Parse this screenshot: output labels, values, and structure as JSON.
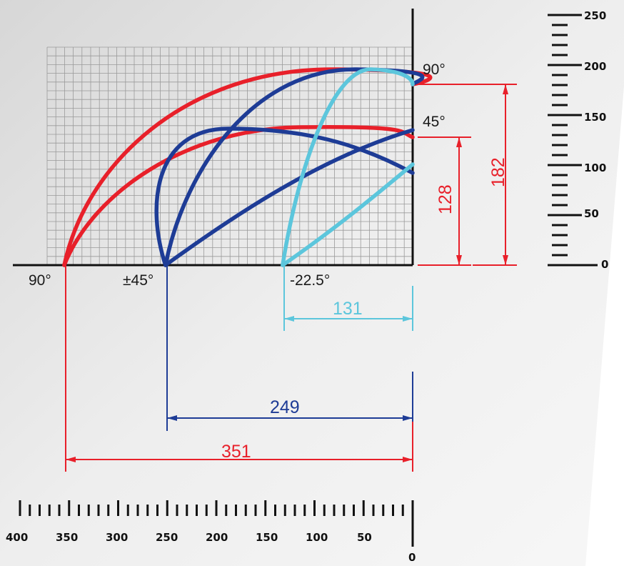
{
  "colors": {
    "red": "#e8202a",
    "blue": "#1e3c96",
    "cyan": "#5cc6dc",
    "grid": "#9a9a9a",
    "axis": "#111111"
  },
  "angle_labels": {
    "horizontal_90": "90°",
    "horizontal_45": "±45°",
    "horizontal_22": "-22.5°",
    "vertical_90": "90°",
    "vertical_45": "45°"
  },
  "dimensions": {
    "height_90": "182",
    "height_45": "128",
    "reach_red": "351",
    "reach_blue": "249",
    "reach_cyan": "131"
  },
  "vertical_scale": {
    "labels": [
      "250",
      "200",
      "150",
      "100",
      "50",
      "0"
    ],
    "max": 250,
    "major_step": 50,
    "minor_step": 10
  },
  "horizontal_scale": {
    "labels": [
      "400",
      "350",
      "300",
      "250",
      "200",
      "150",
      "100",
      "50",
      "0"
    ],
    "max": 400,
    "major_step": 50,
    "minor_step": 10
  },
  "curves": {
    "red_90": {
      "start_x": 351,
      "end_x": 0,
      "peak_y": 197
    },
    "red_45": {
      "start_x": 351,
      "end_x": 0,
      "peak_y": 138
    },
    "blue_high": {
      "start_x": 249,
      "end_x": 0,
      "peak_y": 197
    },
    "blue_mid": {
      "start_x": 249,
      "end_x": 0,
      "peak_y": 137
    },
    "blue_low": {
      "start_x": 249,
      "end_x": 0,
      "end_y": 135
    },
    "cyan_high": {
      "start_x": 131,
      "end_x": 0,
      "peak_y": 197
    },
    "cyan_low": {
      "start_x": 131,
      "end_x": 0,
      "end_y": 100
    }
  }
}
